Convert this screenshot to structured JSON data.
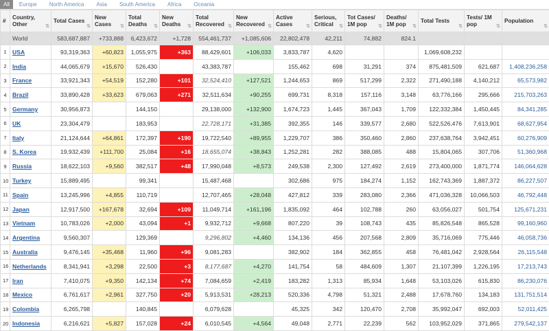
{
  "tabs": [
    "All",
    "Europe",
    "North America",
    "Asia",
    "South America",
    "Africa",
    "Oceania"
  ],
  "headers": [
    "#",
    "Country, Other",
    "Total Cases",
    "New Cases",
    "Total Deaths",
    "New Deaths",
    "Total Recovered",
    "New Recovered",
    "Active Cases",
    "Serious, Critical",
    "Tot Cases/ 1M pop",
    "Deaths/ 1M pop",
    "Total Tests",
    "Tests/ 1M pop",
    "Population"
  ],
  "world": [
    "",
    "World",
    "583,687,887",
    "+733,888",
    "6,423,672",
    "+1,728",
    "554,461,737",
    "+1,085,606",
    "22,802,478",
    "42,211",
    "74,882",
    "824.1",
    "",
    "",
    ""
  ],
  "rows": [
    [
      "1",
      "USA",
      "93,319,363",
      "+60,823",
      "1,055,975",
      "+363",
      "88,429,601",
      "+106,033",
      "3,833,787",
      "4,620",
      "",
      "",
      "1,069,608,232",
      "",
      ""
    ],
    [
      "2",
      "India",
      "44,065,679",
      "+15,670",
      "526,430",
      "",
      "43,383,787",
      "",
      "155,462",
      "698",
      "31,291",
      "374",
      "875,481,509",
      "621,687",
      "1,408,236,258"
    ],
    [
      "3",
      "France",
      "33,921,343",
      "+54,519",
      "152,280",
      "+101",
      "32,524,410",
      "+127,521",
      "1,244,653",
      "869",
      "517,299",
      "2,322",
      "271,490,188",
      "4,140,212",
      "65,573,982"
    ],
    [
      "4",
      "Brazil",
      "33,890,428",
      "+33,623",
      "679,063",
      "+271",
      "32,511,634",
      "+90,255",
      "699,731",
      "8,318",
      "157,116",
      "3,148",
      "63,776,166",
      "295,666",
      "215,703,263"
    ],
    [
      "5",
      "Germany",
      "30,956,873",
      "",
      "144,150",
      "",
      "29,138,000",
      "+132,900",
      "1,674,723",
      "1,445",
      "367,043",
      "1,709",
      "122,332,384",
      "1,450,445",
      "84,341,285"
    ],
    [
      "6",
      "UK",
      "23,304,479",
      "",
      "183,953",
      "",
      "22,728,171",
      "+31,385",
      "392,355",
      "146",
      "339,577",
      "2,680",
      "522,526,476",
      "7,613,901",
      "68,627,954"
    ],
    [
      "7",
      "Italy",
      "21,124,644",
      "+64,861",
      "172,397",
      "+190",
      "19,722,540",
      "+89,955",
      "1,229,707",
      "386",
      "350,460",
      "2,860",
      "237,638,764",
      "3,942,451",
      "60,276,909"
    ],
    [
      "8",
      "S. Korea",
      "19,932,439",
      "+111,700",
      "25,084",
      "+16",
      "18,655,074",
      "+38,843",
      "1,252,281",
      "282",
      "388,085",
      "488",
      "15,804,065",
      "307,706",
      "51,360,968"
    ],
    [
      "9",
      "Russia",
      "18,622,103",
      "+9,560",
      "382,517",
      "+48",
      "17,990,048",
      "+8,573",
      "249,538",
      "2,300",
      "127,492",
      "2,619",
      "273,400,000",
      "1,871,774",
      "146,064,628"
    ],
    [
      "10",
      "Turkey",
      "15,889,495",
      "",
      "99,341",
      "",
      "15,487,468",
      "",
      "302,686",
      "975",
      "184,274",
      "1,152",
      "162,743,369",
      "1,887,372",
      "86,227,507"
    ],
    [
      "11",
      "Spain",
      "13,245,996",
      "+4,855",
      "110,719",
      "",
      "12,707,465",
      "+28,048",
      "427,812",
      "339",
      "283,080",
      "2,366",
      "471,036,328",
      "10,066,503",
      "46,792,448"
    ],
    [
      "12",
      "Japan",
      "12,917,500",
      "+167,678",
      "32,694",
      "+109",
      "11,049,714",
      "+161,196",
      "1,835,092",
      "464",
      "102,788",
      "260",
      "63,056,027",
      "501,754",
      "125,671,231"
    ],
    [
      "13",
      "Vietnam",
      "10,783,026",
      "+2,000",
      "43,094",
      "+1",
      "9,932,712",
      "+9,668",
      "807,220",
      "39",
      "108,743",
      "435",
      "85,826,548",
      "865,528",
      "99,160,960"
    ],
    [
      "14",
      "Argentina",
      "9,560,307",
      "",
      "129,369",
      "",
      "9,296,802",
      "+4,460",
      "134,136",
      "456",
      "207,568",
      "2,809",
      "35,716,069",
      "775,446",
      "46,058,736"
    ],
    [
      "15",
      "Australia",
      "9,476,145",
      "+35,468",
      "11,960",
      "+96",
      "9,081,283",
      "",
      "382,902",
      "184",
      "362,855",
      "458",
      "76,481,042",
      "2,928,564",
      "26,115,548"
    ],
    [
      "16",
      "Netherlands",
      "8,341,941",
      "+3,298",
      "22,500",
      "+3",
      "8,177,687",
      "+4,270",
      "141,754",
      "58",
      "484,609",
      "1,307",
      "21,107,399",
      "1,226,195",
      "17,213,743"
    ],
    [
      "17",
      "Iran",
      "7,410,075",
      "+9,350",
      "142,134",
      "+74",
      "7,084,659",
      "+2,419",
      "183,282",
      "1,313",
      "85,934",
      "1,648",
      "53,103,026",
      "615,830",
      "86,230,076"
    ],
    [
      "18",
      "Mexico",
      "6,761,617",
      "+2,961",
      "327,750",
      "+20",
      "5,913,531",
      "+28,213",
      "520,336",
      "4,798",
      "51,321",
      "2,488",
      "17,678,760",
      "134,183",
      "131,751,514"
    ],
    [
      "19",
      "Colombia",
      "6,265,798",
      "",
      "140,845",
      "",
      "6,079,628",
      "",
      "45,325",
      "342",
      "120,470",
      "2,708",
      "35,992,047",
      "692,003",
      "52,011,425"
    ],
    [
      "20",
      "Indonesia",
      "6,216,621",
      "+5,827",
      "157,028",
      "+24",
      "6,010,545",
      "+4,564",
      "49,048",
      "2,771",
      "22,239",
      "562",
      "103,952,029",
      "371,865",
      "279,542,137"
    ]
  ],
  "italic_recovered_rows": [
    "3",
    "6",
    "8",
    "14",
    "16"
  ],
  "colors": {
    "new_cases": "#fdf2b8",
    "new_deaths": "#ee1c1c",
    "new_recovered": "#cdeecd",
    "link": "#2a5d9f"
  }
}
